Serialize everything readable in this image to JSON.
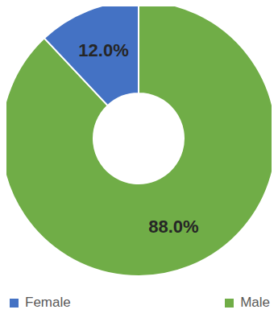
{
  "chart_data": {
    "type": "pie",
    "categories": [
      "Male",
      "Female"
    ],
    "values": [
      88.0,
      12.0
    ],
    "value_labels": [
      "88.0%",
      "12.0%"
    ],
    "colors": [
      "#70ad47",
      "#4472c4"
    ],
    "data_labels": true,
    "legend": "bottom"
  }
}
